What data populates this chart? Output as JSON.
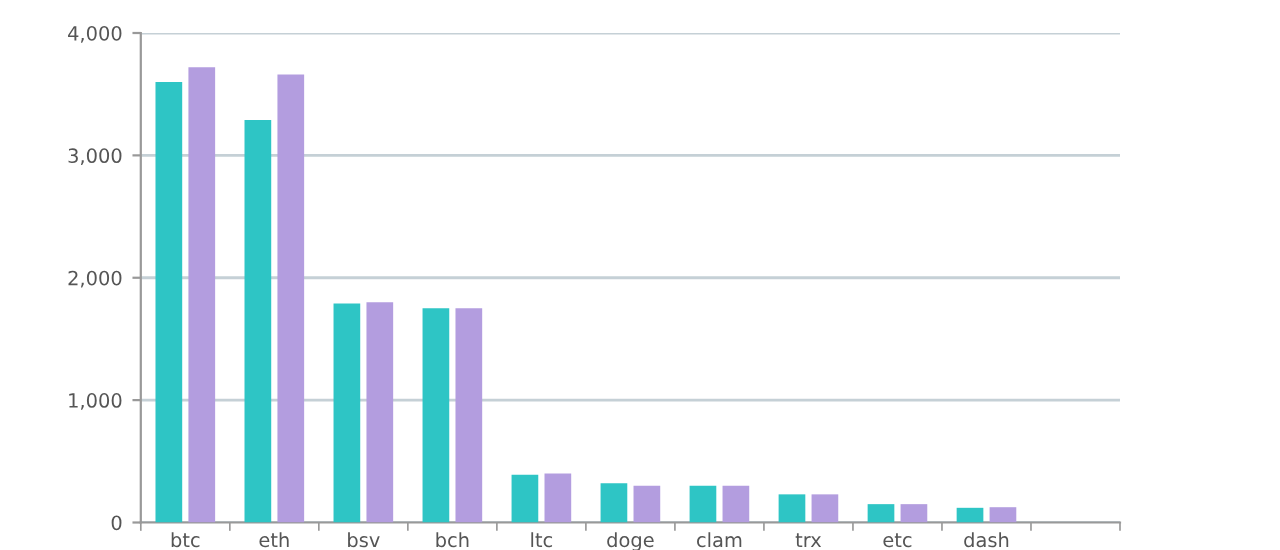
{
  "chart_data": {
    "type": "bar",
    "categories": [
      "btc",
      "eth",
      "bsv",
      "bch",
      "ltc",
      "doge",
      "clam",
      "trx",
      "etc",
      "dash",
      null
    ],
    "series": [
      {
        "color": "#2ec5c5",
        "values": [
          3600,
          3290,
          1790,
          1750,
          390,
          320,
          300,
          230,
          150,
          120,
          null
        ]
      },
      {
        "color": "#b39ddf",
        "values": [
          3720,
          3660,
          1800,
          1750,
          400,
          300,
          300,
          230,
          150,
          125,
          null
        ]
      }
    ],
    "ylim": [
      0,
      4000
    ],
    "yticks": [
      0,
      {
        "value": 1000,
        "label": "1,000"
      },
      {
        "value": 2000,
        "label": "2,000"
      },
      {
        "value": 3000,
        "label": "3,000"
      },
      {
        "value": 4000,
        "label": "4,000"
      }
    ],
    "grid": "y"
  }
}
